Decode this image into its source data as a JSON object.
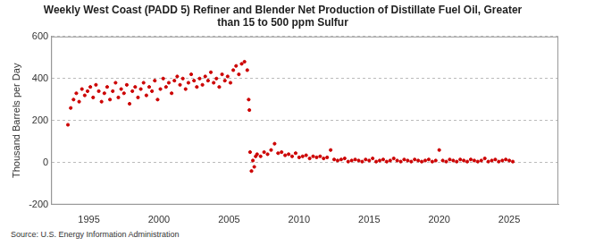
{
  "chart_data": {
    "type": "scatter",
    "title": [
      "Weekly West Coast (PADD 5) Refiner and Blender Net Production of Distillate Fuel Oil, Greater",
      "than 15 to 500 ppm Sulfur"
    ],
    "y_label": "Thousand Barrels per Day",
    "source": "Source: U.S. Energy Information Administration",
    "color": "#cc0000",
    "marker": "circle",
    "grid": true,
    "xlim": [
      1992.3,
      2028.5
    ],
    "xticks": [
      1995,
      2000,
      2005,
      2010,
      2015,
      2020,
      2025
    ],
    "ylim": [
      -200,
      600
    ],
    "yticks": [
      -200,
      0,
      200,
      400,
      600
    ],
    "x": [
      1993.5,
      1993.7,
      1993.9,
      1994.1,
      1994.3,
      1994.5,
      1994.7,
      1994.9,
      1995.1,
      1995.3,
      1995.5,
      1995.7,
      1995.9,
      1996.1,
      1996.3,
      1996.5,
      1996.7,
      1996.9,
      1997.1,
      1997.3,
      1997.5,
      1997.7,
      1997.9,
      1998.1,
      1998.3,
      1998.5,
      1998.7,
      1998.9,
      1999.1,
      1999.3,
      1999.5,
      1999.7,
      1999.9,
      2000.1,
      2000.3,
      2000.5,
      2000.7,
      2000.9,
      2001.1,
      2001.3,
      2001.5,
      2001.7,
      2001.9,
      2002.1,
      2002.3,
      2002.5,
      2002.7,
      2002.9,
      2003.1,
      2003.3,
      2003.5,
      2003.7,
      2003.9,
      2004.1,
      2004.3,
      2004.5,
      2004.7,
      2004.9,
      2005.1,
      2005.3,
      2005.5,
      2005.7,
      2005.9,
      2006.1,
      2006.3,
      2006.4,
      2006.45,
      2006.5,
      2006.6,
      2006.7,
      2006.8,
      2006.9,
      2007.0,
      2007.25,
      2007.5,
      2007.75,
      2008.0,
      2008.25,
      2008.5,
      2008.75,
      2009.0,
      2009.25,
      2009.5,
      2009.75,
      2010.0,
      2010.25,
      2010.5,
      2010.75,
      2011.0,
      2011.25,
      2011.5,
      2011.75,
      2012.0,
      2012.25,
      2012.5,
      2012.75,
      2013.0,
      2013.25,
      2013.5,
      2013.75,
      2014.0,
      2014.25,
      2014.5,
      2014.75,
      2015.0,
      2015.25,
      2015.5,
      2015.75,
      2016.0,
      2016.25,
      2016.5,
      2016.75,
      2017.0,
      2017.25,
      2017.5,
      2017.75,
      2018.0,
      2018.25,
      2018.5,
      2018.75,
      2019.0,
      2019.25,
      2019.5,
      2019.75,
      2020.0,
      2020.25,
      2020.5,
      2020.75,
      2021.0,
      2021.25,
      2021.5,
      2021.75,
      2022.0,
      2022.25,
      2022.5,
      2022.75,
      2023.0,
      2023.25,
      2023.5,
      2023.75,
      2024.0,
      2024.25,
      2024.5,
      2024.75,
      2025.0,
      2025.25
    ],
    "values": [
      180,
      260,
      300,
      330,
      290,
      350,
      320,
      340,
      360,
      310,
      370,
      340,
      290,
      330,
      360,
      300,
      340,
      380,
      310,
      350,
      330,
      370,
      280,
      340,
      360,
      310,
      350,
      380,
      320,
      360,
      340,
      390,
      300,
      350,
      400,
      360,
      380,
      330,
      390,
      410,
      370,
      400,
      350,
      380,
      420,
      390,
      360,
      400,
      370,
      410,
      390,
      430,
      380,
      400,
      360,
      420,
      390,
      410,
      380,
      440,
      460,
      420,
      470,
      480,
      440,
      300,
      250,
      50,
      -40,
      10,
      -20,
      30,
      40,
      30,
      50,
      40,
      60,
      90,
      45,
      50,
      35,
      40,
      30,
      45,
      25,
      30,
      35,
      20,
      30,
      25,
      30,
      20,
      25,
      60,
      15,
      10,
      15,
      20,
      5,
      10,
      15,
      10,
      5,
      15,
      10,
      20,
      5,
      10,
      15,
      5,
      10,
      20,
      10,
      5,
      15,
      10,
      5,
      15,
      10,
      5,
      10,
      15,
      5,
      10,
      60,
      10,
      5,
      15,
      10,
      5,
      15,
      10,
      5,
      15,
      10,
      5,
      10,
      20,
      5,
      10,
      15,
      5,
      10,
      15,
      10,
      5
    ]
  }
}
